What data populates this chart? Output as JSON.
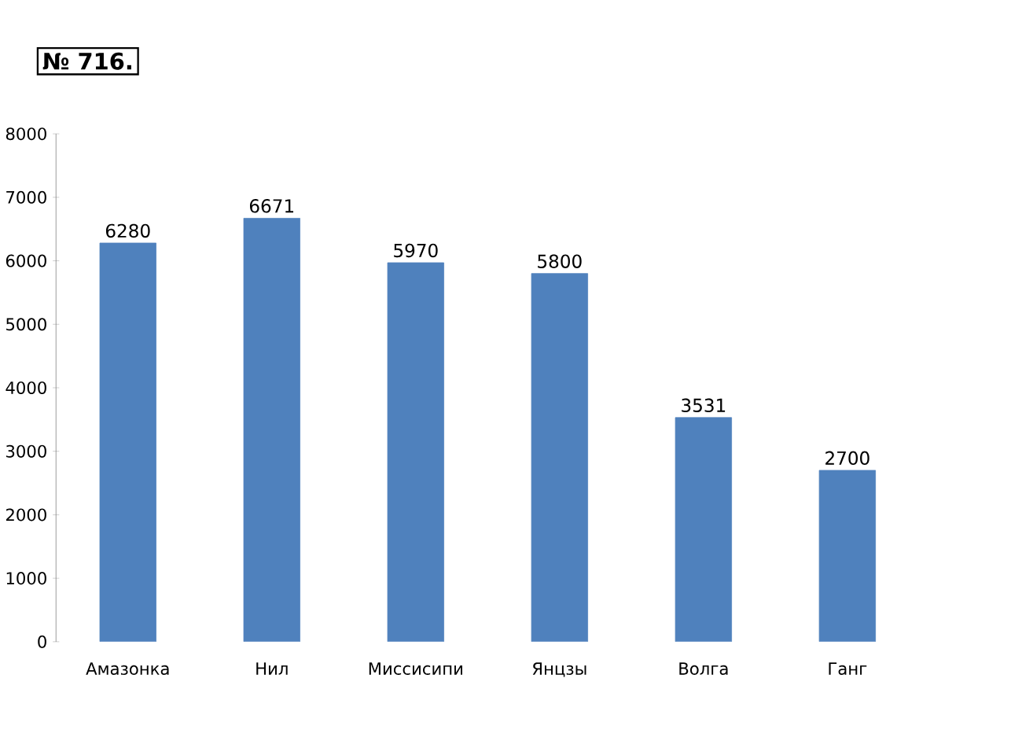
{
  "chart_data": {
    "type": "bar",
    "title": "№ 716.",
    "categories": [
      "Амазонка",
      "Нил",
      "Миссисипи",
      "Янцзы",
      "Волга",
      "Ганг"
    ],
    "values": [
      6280,
      6671,
      5970,
      5800,
      3531,
      2700
    ],
    "color": "#4f81bd",
    "ylim": [
      0,
      8000
    ],
    "yticks": [
      0,
      1000,
      2000,
      3000,
      4000,
      5000,
      6000,
      7000,
      8000
    ],
    "data_labels": true
  }
}
